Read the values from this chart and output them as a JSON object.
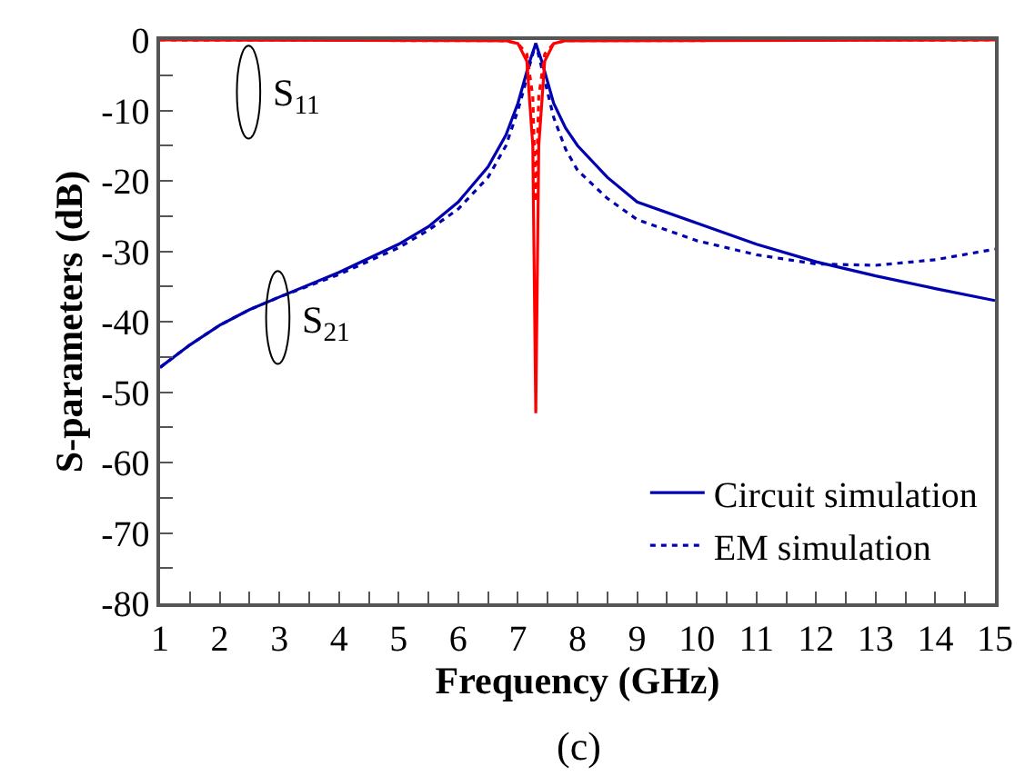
{
  "chart_data": {
    "type": "line",
    "xlabel": "Frequency (GHz)",
    "ylabel": "S-parameters (dB)",
    "xlim": [
      1,
      15
    ],
    "ylim": [
      -80,
      0
    ],
    "xticks": [
      1,
      {
        "value": 1.5,
        "label": null
      },
      2,
      {
        "value": 2.5,
        "label": null
      },
      3,
      {
        "value": 3.5,
        "label": null
      },
      4,
      {
        "value": 4.5,
        "label": null
      },
      5,
      {
        "value": 5.5,
        "label": null
      },
      6,
      {
        "value": 6.5,
        "label": null
      },
      7,
      {
        "value": 7.5,
        "label": null
      },
      8,
      {
        "value": 8.5,
        "label": null
      },
      9,
      {
        "value": 9.5,
        "label": null
      },
      10,
      {
        "value": 10.5,
        "label": null
      },
      11,
      {
        "value": 11.5,
        "label": null
      },
      12,
      {
        "value": 12.5,
        "label": null
      },
      13,
      {
        "value": 13.5,
        "label": null
      },
      14,
      {
        "value": 14.5,
        "label": null
      },
      15
    ],
    "yticks": [
      -80,
      {
        "value": -75,
        "label": null
      },
      -70,
      {
        "value": -65,
        "label": null
      },
      -60,
      {
        "value": -55,
        "label": null
      },
      -50,
      {
        "value": -45,
        "label": null
      },
      -40,
      {
        "value": -35,
        "label": null
      },
      -30,
      {
        "value": -25,
        "label": null
      },
      -20,
      {
        "value": -15,
        "label": null
      },
      -10,
      {
        "value": -5,
        "label": null
      },
      0
    ],
    "legend": "bottom right",
    "marker": "none",
    "series": [
      {
        "name": "Circuit simulation",
        "color": "#0000b0",
        "line_style": "solid",
        "x": [
          1,
          1.5,
          2,
          2.5,
          3,
          4,
          5,
          5.5,
          6,
          6.5,
          6.8,
          7,
          7.1,
          7.2,
          7.3,
          7.4,
          7.5,
          7.6,
          7.8,
          8,
          8.5,
          9,
          10,
          11,
          12,
          13,
          14,
          15
        ],
        "values": [
          -46.5,
          -43.3,
          -40.5,
          -38.3,
          -36.5,
          -33,
          -29,
          -26.5,
          -23,
          -18,
          -13.5,
          -9,
          -6,
          -3,
          -0.5,
          -3,
          -6,
          -9,
          -12.5,
          -15,
          -19.5,
          -23,
          -26,
          -29,
          -31.5,
          -33.5,
          -35.3,
          -37
        ]
      },
      {
        "name": "EM simulation",
        "color": "#0000b0",
        "line_style": "dotted",
        "x": [
          1,
          1.5,
          2,
          2.5,
          3,
          4,
          5,
          5.5,
          6,
          6.5,
          6.8,
          7,
          7.1,
          7.2,
          7.3,
          7.4,
          7.5,
          7.6,
          7.8,
          8,
          8.5,
          9,
          10,
          11,
          12,
          13,
          14,
          15
        ],
        "values": [
          -46.5,
          -43.3,
          -40.5,
          -38.3,
          -36.5,
          -33.3,
          -29.5,
          -27,
          -24,
          -19.5,
          -15,
          -10,
          -7,
          -3.5,
          -0.5,
          -4,
          -7.5,
          -11,
          -15.5,
          -18.5,
          -22.5,
          -25.5,
          -28.5,
          -30.5,
          -31.8,
          -32,
          -31.2,
          -29.7
        ]
      },
      {
        "color": "#ff0000",
        "line_style": "solid",
        "x": [
          1,
          6.8,
          7.0,
          7.15,
          7.25,
          7.3,
          7.35,
          7.45,
          7.6,
          7.8,
          15
        ],
        "values": [
          0,
          -0.1,
          -0.5,
          -3,
          -15,
          -53,
          -15,
          -3,
          -0.5,
          -0.1,
          0
        ]
      },
      {
        "color": "#ff0000",
        "line_style": "dotted",
        "x": [
          1,
          6.8,
          7.0,
          7.15,
          7.25,
          7.3,
          7.35,
          7.45,
          7.6,
          7.8,
          15
        ],
        "values": [
          0,
          -0.1,
          -0.5,
          -2,
          -8,
          -23,
          -8,
          -2,
          -0.5,
          -0.1,
          0
        ]
      }
    ],
    "annotations": [
      "S$_{11}$",
      "S$_{21}$",
      "(c)"
    ]
  }
}
